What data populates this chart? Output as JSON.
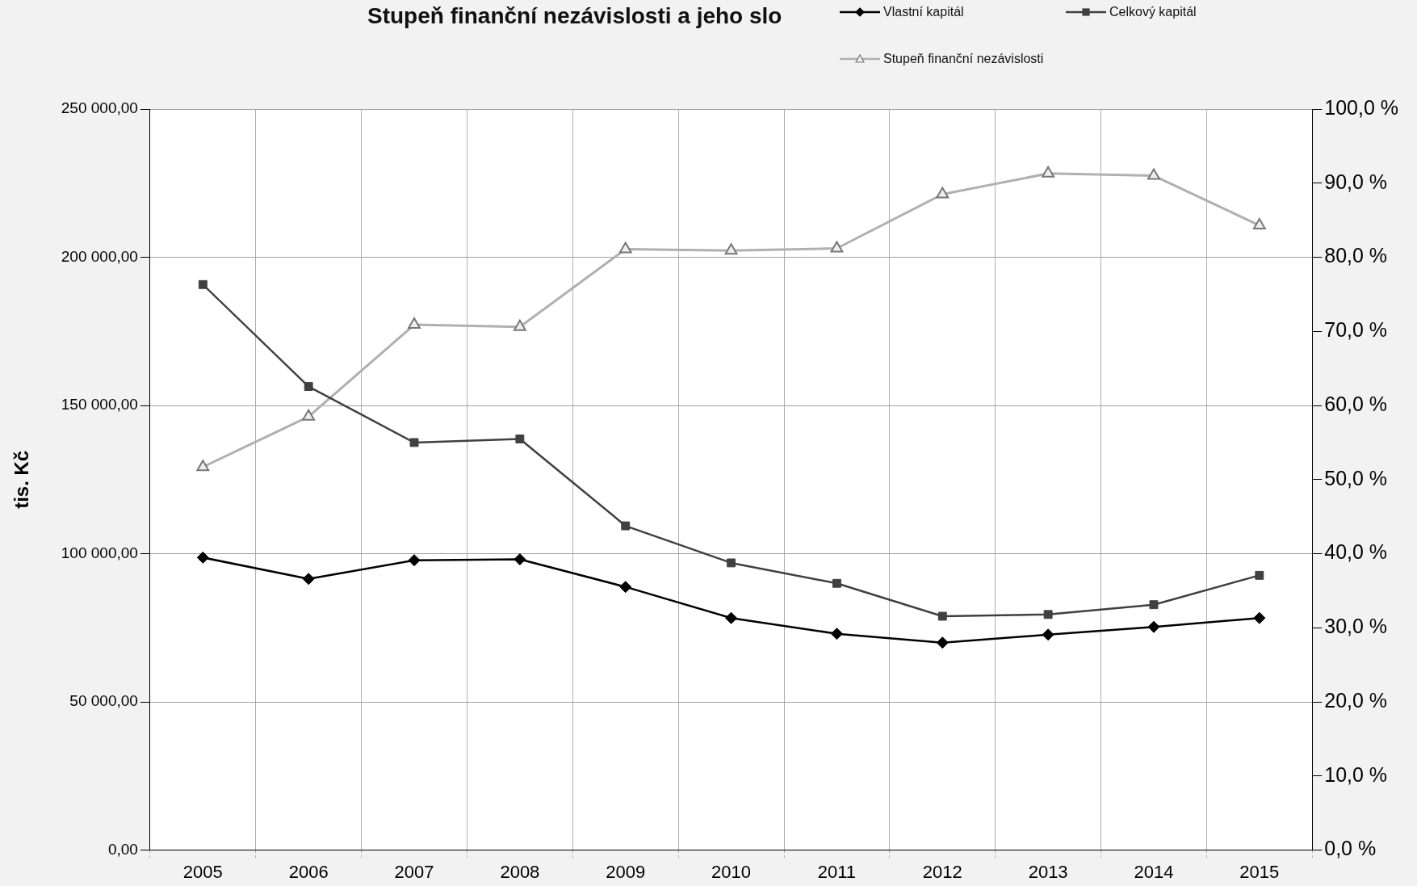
{
  "chart_data": {
    "type": "line",
    "title": "Stupeň finanční nezávislosti a jeho slo",
    "ylabel": "tis. Kč",
    "categories": [
      "2005",
      "2006",
      "2007",
      "2008",
      "2009",
      "2010",
      "2011",
      "2012",
      "2013",
      "2014",
      "2015"
    ],
    "series": [
      {
        "name": "Vlastní kapitál",
        "color": "#000000",
        "marker": "diamond",
        "values": [
          98700,
          91500,
          97800,
          98100,
          88800,
          78300,
          73000,
          70000,
          72700,
          75300,
          78300
        ]
      },
      {
        "name": "Celkový kapitál",
        "color": "#404040",
        "marker": "square",
        "values": [
          190800,
          156400,
          137500,
          138700,
          109400,
          96900,
          90000,
          78900,
          79500,
          82800,
          92700
        ]
      },
      {
        "name": "Stupeň finanční nezávislosti",
        "color": "#b0b0b0",
        "marker": "triangle",
        "axis": "y2",
        "values": [
          51.7,
          58.5,
          70.9,
          70.6,
          81.1,
          80.9,
          81.2,
          88.5,
          91.3,
          91.0,
          84.3
        ]
      }
    ],
    "ylim": [
      0,
      250000
    ],
    "yticks": [
      {
        "value": 0,
        "label": "0,00"
      },
      {
        "value": 50000,
        "label": "50 000,00"
      },
      {
        "value": 100000,
        "label": "100 000,00"
      },
      {
        "value": 150000,
        "label": "150 000,00"
      },
      {
        "value": 200000,
        "label": "200 000,00"
      },
      {
        "value": 250000,
        "label": "250 000,00"
      }
    ],
    "y2lim": [
      0,
      100
    ],
    "y2ticks": [
      {
        "value": 0,
        "label": "0,0 %"
      },
      {
        "value": 10,
        "label": "10,0 %"
      },
      {
        "value": 20,
        "label": "20,0 %"
      },
      {
        "value": 30,
        "label": "30,0 %"
      },
      {
        "value": 40,
        "label": "40,0 %"
      },
      {
        "value": 50,
        "label": "50,0 %"
      },
      {
        "value": 60,
        "label": "60,0 %"
      },
      {
        "value": 70,
        "label": "70,0 %"
      },
      {
        "value": 80,
        "label": "80,0 %"
      },
      {
        "value": 90,
        "label": "90,0 %"
      },
      {
        "value": 100,
        "label": "100,0 %"
      }
    ],
    "grid": true,
    "legend": "top right",
    "line_style": "solid"
  }
}
